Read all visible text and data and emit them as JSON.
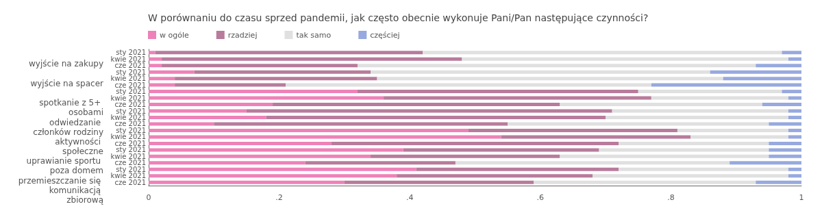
{
  "chart_data": {
    "type": "bar",
    "orientation": "horizontal",
    "stacked": true,
    "title": "W porównaniu do czasu sprzed pandemii, jak często obecnie wykonuje Pani/Pan następujące czynności?",
    "categories": [
      "sty 2021",
      "kwie 2021",
      "cze 2021",
      "sty 2021",
      "kwie 2021",
      "cze 2021",
      "sty 2021",
      "kwie 2021",
      "cze 2021",
      "sty 2021",
      "kwie 2021",
      "cze 2021",
      "sty 2021",
      "kwie 2021",
      "cze 2021",
      "sty 2021",
      "kwie 2021",
      "cze 2021",
      "sty 2021",
      "kwie 2021",
      "cze 2021"
    ],
    "annotations": [
      "wyjście na zakupy",
      "wyjście na spacer",
      "spotkanie z 5+ osobami",
      "odwiedzanie członków rodziny",
      "aktywności społeczne",
      "uprawianie sportu poza domem",
      "przemieszczanie się komunikacją zbiorową"
    ],
    "series": [
      {
        "name": "w ogóle",
        "color": "#ee82b8",
        "values": [
          0.01,
          0.02,
          0.02,
          0.07,
          0.04,
          0.04,
          0.32,
          0.36,
          0.19,
          0.15,
          0.18,
          0.1,
          0.49,
          0.54,
          0.28,
          0.39,
          0.34,
          0.24,
          0.41,
          0.38,
          0.3
        ]
      },
      {
        "name": "rzadziej",
        "color": "#b87b9b",
        "values": [
          0.41,
          0.46,
          0.3,
          0.27,
          0.31,
          0.17,
          0.43,
          0.41,
          0.44,
          0.56,
          0.52,
          0.45,
          0.32,
          0.29,
          0.44,
          0.3,
          0.29,
          0.23,
          0.31,
          0.3,
          0.29
        ]
      },
      {
        "name": "tak samo",
        "color": "#e0e0e0",
        "values": [
          0.55,
          0.5,
          0.61,
          0.52,
          0.53,
          0.56,
          0.22,
          0.21,
          0.31,
          0.27,
          0.28,
          0.4,
          0.17,
          0.15,
          0.23,
          0.26,
          0.32,
          0.42,
          0.26,
          0.3,
          0.34
        ]
      },
      {
        "name": "częściej",
        "color": "#97a9de",
        "values": [
          0.03,
          0.02,
          0.07,
          0.14,
          0.12,
          0.23,
          0.03,
          0.02,
          0.06,
          0.02,
          0.02,
          0.05,
          0.02,
          0.02,
          0.05,
          0.05,
          0.05,
          0.11,
          0.02,
          0.02,
          0.07
        ]
      }
    ],
    "xlim": [
      0,
      1
    ],
    "xticks": [
      0,
      {
        "value": 0.2,
        "label": ".2"
      },
      {
        "value": 0.4,
        "label": ".4"
      },
      {
        "value": 0.6,
        "label": ".6"
      },
      {
        "value": 0.8,
        "label": ".8"
      },
      1
    ],
    "legend": "top left"
  }
}
